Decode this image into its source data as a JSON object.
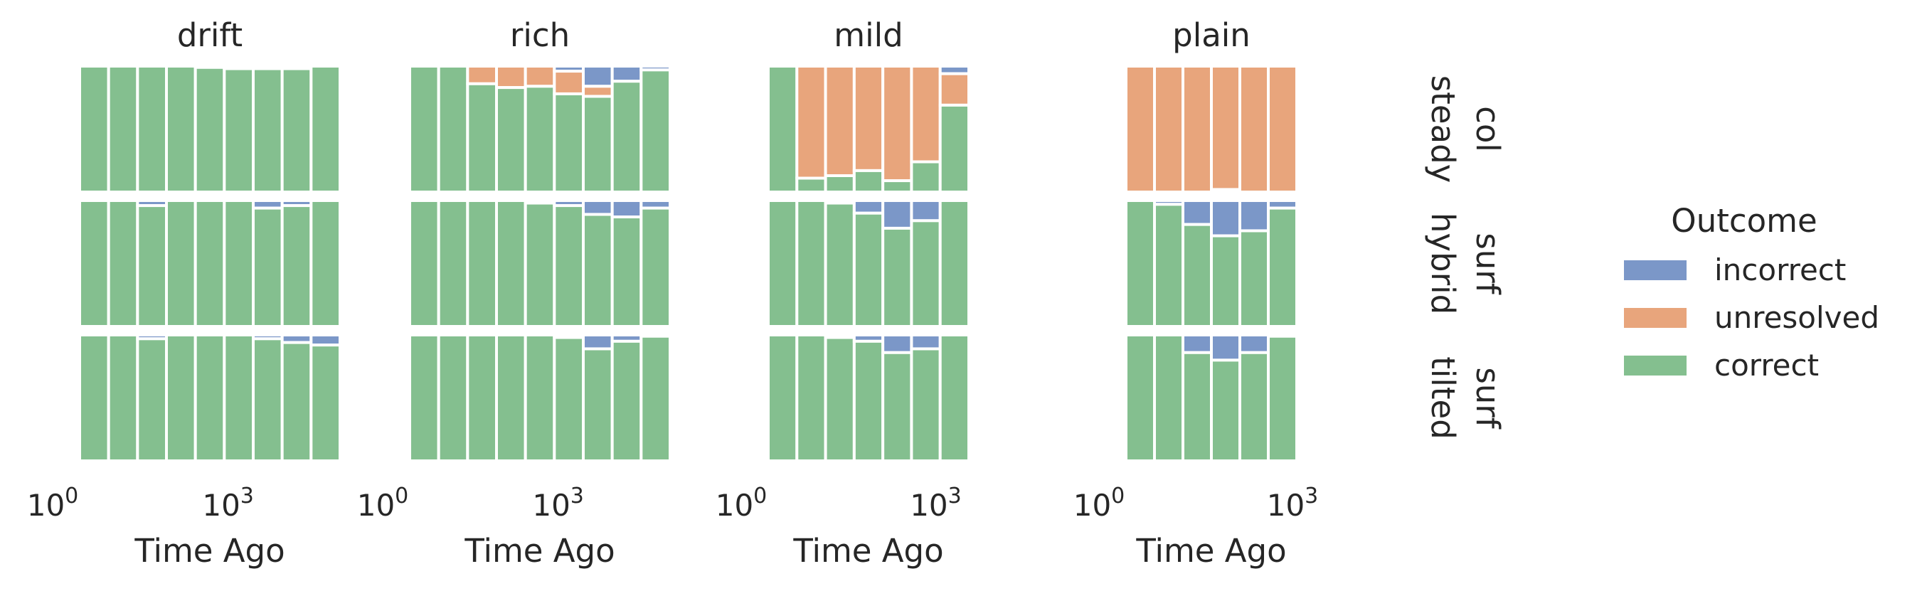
{
  "chart_data": {
    "type": "bar",
    "stacked": true,
    "normalized": true,
    "x_scale": "log",
    "x_ticks": [
      {
        "base": "10",
        "exp": "0"
      },
      {
        "base": "10",
        "exp": "3"
      }
    ],
    "xlabel": "Time Ago",
    "columns": [
      "drift",
      "rich",
      "mild",
      "plain"
    ],
    "rows": [
      {
        "line1": "col",
        "line2": "steady"
      },
      {
        "line1": "surf",
        "line2": "hybrid"
      },
      {
        "line1": "surf",
        "line2": "tilted"
      }
    ],
    "colors": {
      "incorrect": "#7b97c8",
      "unresolved": "#e8a57c",
      "correct": "#84bf8f"
    },
    "legend": {
      "title": "Outcome",
      "position": "right",
      "entries": [
        "incorrect",
        "unresolved",
        "correct"
      ]
    },
    "panels": [
      [
        {
          "incorrect": [
            0,
            0,
            0,
            0,
            0,
            0.01,
            0.02,
            0.02,
            0
          ],
          "unresolved": [
            0,
            0,
            0,
            0,
            0.01,
            0.01,
            0,
            0,
            0
          ]
        },
        {
          "incorrect": [
            0,
            0,
            0.04,
            0,
            0,
            0,
            0.06,
            0.04,
            0
          ],
          "unresolved": [
            0,
            0,
            0,
            0,
            0,
            0,
            0,
            0,
            0
          ]
        },
        {
          "incorrect": [
            0,
            0,
            0.03,
            0,
            0,
            0,
            0.03,
            0.06,
            0.08
          ],
          "unresolved": [
            0,
            0,
            0,
            0,
            0,
            0,
            0,
            0,
            0
          ]
        }
      ],
      [
        {
          "incorrect": [
            0,
            0,
            0,
            0,
            0,
            0.04,
            0.16,
            0.12,
            0.03
          ],
          "unresolved": [
            0,
            0,
            0.14,
            0.17,
            0.16,
            0.18,
            0.08,
            0,
            0
          ]
        },
        {
          "incorrect": [
            0,
            0,
            0,
            0,
            0.02,
            0.04,
            0.11,
            0.13,
            0.06
          ],
          "unresolved": [
            0,
            0,
            0,
            0,
            0,
            0,
            0,
            0,
            0
          ]
        },
        {
          "incorrect": [
            0,
            0,
            0,
            0,
            0,
            0.02,
            0.11,
            0.05,
            0.01
          ],
          "unresolved": [
            0,
            0,
            0,
            0,
            0,
            0,
            0,
            0,
            0
          ]
        }
      ],
      [
        {
          "incorrect": [
            0,
            0,
            0,
            0,
            0,
            0,
            0.06
          ],
          "unresolved": [
            0,
            0.89,
            0.87,
            0.83,
            0.91,
            0.76,
            0.25
          ]
        },
        {
          "incorrect": [
            0,
            0,
            0.02,
            0.1,
            0.22,
            0.16,
            0
          ],
          "unresolved": [
            0,
            0,
            0,
            0,
            0,
            0,
            0
          ]
        },
        {
          "incorrect": [
            0,
            0,
            0.02,
            0.05,
            0.14,
            0.11,
            0
          ],
          "unresolved": [
            0,
            0,
            0,
            0,
            0,
            0,
            0
          ]
        }
      ],
      [
        {
          "incorrect": [
            0,
            0,
            0,
            0,
            0,
            0
          ],
          "unresolved": [
            1.0,
            1.0,
            1.0,
            0.98,
            1.0,
            1.0
          ]
        },
        {
          "incorrect": [
            0,
            0.03,
            0.19,
            0.28,
            0.24,
            0.06
          ],
          "unresolved": [
            0,
            0,
            0,
            0,
            0,
            0
          ]
        },
        {
          "incorrect": [
            0,
            0,
            0.14,
            0.2,
            0.14,
            0.01
          ],
          "unresolved": [
            0,
            0,
            0,
            0,
            0,
            0
          ]
        }
      ]
    ]
  }
}
